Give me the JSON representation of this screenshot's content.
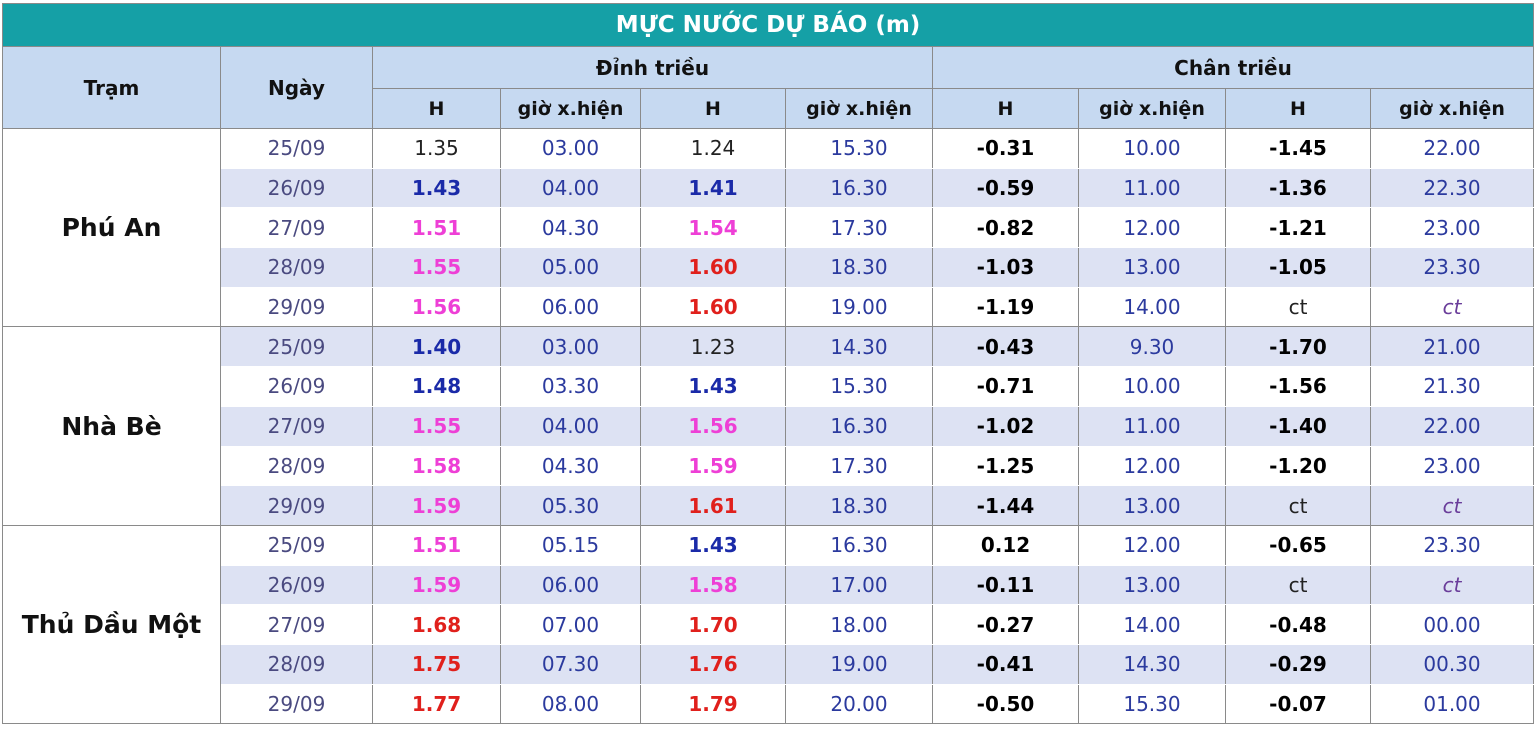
{
  "title": "MỰC NƯỚC DỰ BÁO (m)",
  "header": {
    "station": "Trạm",
    "date": "Ngày",
    "high_tide": "Đỉnh triều",
    "low_tide": "Chân triều",
    "columns": [
      "H",
      "giờ x.hiện",
      "H",
      "giờ x.hiện",
      "H",
      "giờ x.hiện",
      "H",
      "giờ x.hiện"
    ]
  },
  "stations": [
    {
      "name": "Phú An",
      "rows": [
        {
          "date": "25/09",
          "cells": [
            "1.35",
            "03.00",
            "1.24",
            "15.30",
            "-0.31",
            "10.00",
            "-1.45",
            "22.00"
          ],
          "colors": [
            "#222222",
            "#2b3a9e",
            "#222222",
            "#2b3a9e",
            "#000000",
            "#2b3a9e",
            "#000000",
            "#2b3a9e"
          ]
        },
        {
          "date": "26/09",
          "cells": [
            "1.43",
            "04.00",
            "1.41",
            "16.30",
            "-0.59",
            "11.00",
            "-1.36",
            "22.30"
          ],
          "colors": [
            "#1a2aa8",
            "#2b3a9e",
            "#1a2aa8",
            "#2b3a9e",
            "#000000",
            "#2b3a9e",
            "#000000",
            "#2b3a9e"
          ]
        },
        {
          "date": "27/09",
          "cells": [
            "1.51",
            "04.30",
            "1.54",
            "17.30",
            "-0.82",
            "12.00",
            "-1.21",
            "23.00"
          ],
          "colors": [
            "#ee3fd6",
            "#2b3a9e",
            "#ee3fd6",
            "#2b3a9e",
            "#000000",
            "#2b3a9e",
            "#000000",
            "#2b3a9e"
          ]
        },
        {
          "date": "28/09",
          "cells": [
            "1.55",
            "05.00",
            "1.60",
            "18.30",
            "-1.03",
            "13.00",
            "-1.05",
            "23.30"
          ],
          "colors": [
            "#ee3fd6",
            "#2b3a9e",
            "#e0201c",
            "#2b3a9e",
            "#000000",
            "#2b3a9e",
            "#000000",
            "#2b3a9e"
          ]
        },
        {
          "date": "29/09",
          "cells": [
            "1.56",
            "06.00",
            "1.60",
            "19.00",
            "-1.19",
            "14.00",
            "ct",
            "ct"
          ],
          "colors": [
            "#ee3fd6",
            "#2b3a9e",
            "#e0201c",
            "#2b3a9e",
            "#000000",
            "#2b3a9e",
            "#222222",
            "#6a3d9a"
          ]
        }
      ]
    },
    {
      "name": "Nhà Bè",
      "rows": [
        {
          "date": "25/09",
          "cells": [
            "1.40",
            "03.00",
            "1.23",
            "14.30",
            "-0.43",
            "9.30",
            "-1.70",
            "21.00"
          ],
          "colors": [
            "#1a2aa8",
            "#2b3a9e",
            "#222222",
            "#2b3a9e",
            "#000000",
            "#2b3a9e",
            "#000000",
            "#2b3a9e"
          ]
        },
        {
          "date": "26/09",
          "cells": [
            "1.48",
            "03.30",
            "1.43",
            "15.30",
            "-0.71",
            "10.00",
            "-1.56",
            "21.30"
          ],
          "colors": [
            "#1a2aa8",
            "#2b3a9e",
            "#1a2aa8",
            "#2b3a9e",
            "#000000",
            "#2b3a9e",
            "#000000",
            "#2b3a9e"
          ]
        },
        {
          "date": "27/09",
          "cells": [
            "1.55",
            "04.00",
            "1.56",
            "16.30",
            "-1.02",
            "11.00",
            "-1.40",
            "22.00"
          ],
          "colors": [
            "#ee3fd6",
            "#2b3a9e",
            "#ee3fd6",
            "#2b3a9e",
            "#000000",
            "#2b3a9e",
            "#000000",
            "#2b3a9e"
          ]
        },
        {
          "date": "28/09",
          "cells": [
            "1.58",
            "04.30",
            "1.59",
            "17.30",
            "-1.25",
            "12.00",
            "-1.20",
            "23.00"
          ],
          "colors": [
            "#ee3fd6",
            "#2b3a9e",
            "#ee3fd6",
            "#2b3a9e",
            "#000000",
            "#2b3a9e",
            "#000000",
            "#2b3a9e"
          ]
        },
        {
          "date": "29/09",
          "cells": [
            "1.59",
            "05.30",
            "1.61",
            "18.30",
            "-1.44",
            "13.00",
            "ct",
            "ct"
          ],
          "colors": [
            "#ee3fd6",
            "#2b3a9e",
            "#e0201c",
            "#2b3a9e",
            "#000000",
            "#2b3a9e",
            "#222222",
            "#6a3d9a"
          ]
        }
      ]
    },
    {
      "name": "Thủ Dầu Một",
      "rows": [
        {
          "date": "25/09",
          "cells": [
            "1.51",
            "05.15",
            "1.43",
            "16.30",
            "0.12",
            "12.00",
            "-0.65",
            "23.30"
          ],
          "colors": [
            "#ee3fd6",
            "#2b3a9e",
            "#1a2aa8",
            "#2b3a9e",
            "#000000",
            "#2b3a9e",
            "#000000",
            "#2b3a9e"
          ]
        },
        {
          "date": "26/09",
          "cells": [
            "1.59",
            "06.00",
            "1.58",
            "17.00",
            "-0.11",
            "13.00",
            "ct",
            "ct"
          ],
          "colors": [
            "#ee3fd6",
            "#2b3a9e",
            "#ee3fd6",
            "#2b3a9e",
            "#000000",
            "#2b3a9e",
            "#222222",
            "#6a3d9a"
          ]
        },
        {
          "date": "27/09",
          "cells": [
            "1.68",
            "07.00",
            "1.70",
            "18.00",
            "-0.27",
            "14.00",
            "-0.48",
            "00.00"
          ],
          "colors": [
            "#e0201c",
            "#2b3a9e",
            "#e0201c",
            "#2b3a9e",
            "#000000",
            "#2b3a9e",
            "#000000",
            "#2b3a9e"
          ]
        },
        {
          "date": "28/09",
          "cells": [
            "1.75",
            "07.30",
            "1.76",
            "19.00",
            "-0.41",
            "14.30",
            "-0.29",
            "00.30"
          ],
          "colors": [
            "#e0201c",
            "#2b3a9e",
            "#e0201c",
            "#2b3a9e",
            "#000000",
            "#2b3a9e",
            "#000000",
            "#2b3a9e"
          ]
        },
        {
          "date": "29/09",
          "cells": [
            "1.77",
            "08.00",
            "1.79",
            "20.00",
            "-0.50",
            "15.30",
            "-0.07",
            "01.00"
          ],
          "colors": [
            "#e0201c",
            "#2b3a9e",
            "#e0201c",
            "#2b3a9e",
            "#000000",
            "#2b3a9e",
            "#000000",
            "#2b3a9e"
          ]
        }
      ]
    }
  ]
}
